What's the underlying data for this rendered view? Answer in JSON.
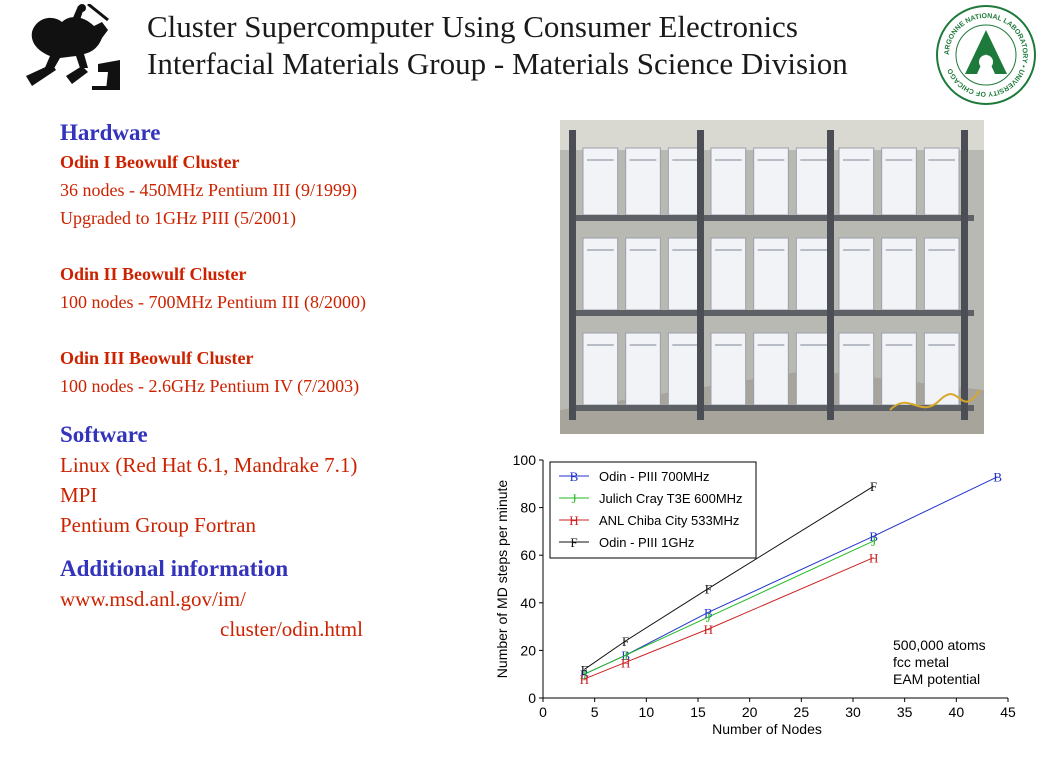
{
  "header": {
    "title_line1": "Cluster Supercomputer Using Consumer Electronics",
    "title_line2": "Interfacial Materials Group - Materials Science Division"
  },
  "logos": {
    "left": {
      "icon": "horse-rider-logo",
      "lettering": ""
    },
    "right": {
      "icon": "argonne-national-laboratory-seal",
      "lettering": "ARGONNE NATIONAL LABORATORY • UNIVERSITY OF CHICAGO"
    }
  },
  "hardware": {
    "heading": "Hardware",
    "clusters": [
      {
        "name": "Odin I Beowulf Cluster",
        "lines": [
          "36 nodes - 450MHz Pentium III (9/1999)",
          "Upgraded to 1GHz PIII (5/2001)"
        ]
      },
      {
        "name": "Odin II Beowulf Cluster",
        "lines": [
          "100 nodes - 700MHz Pentium III (8/2000)"
        ]
      },
      {
        "name": "Odin III Beowulf Cluster",
        "lines": [
          "100 nodes - 2.6GHz Pentium IV (7/2003)"
        ]
      }
    ]
  },
  "software": {
    "heading": "Software",
    "items": [
      "Linux  (Red Hat 6.1, Mandrake 7.1)",
      "MPI",
      "Pentium Group Fortran"
    ]
  },
  "additional": {
    "heading": "Additional information",
    "url_line1": "www.msd.anl.gov/im/",
    "url_line2": "cluster/odin.html"
  },
  "photo": {
    "icon": "server-rack-photo"
  },
  "colors": {
    "title": "#1a1a1a",
    "heading": "#3333bb",
    "body_text": "#cc2200"
  },
  "chart_data": {
    "type": "line",
    "title": "",
    "xlabel": "Number of Nodes",
    "ylabel": "Number of MD steps per minute",
    "xlim": [
      0,
      45
    ],
    "ylim": [
      0,
      100
    ],
    "x_ticks": [
      0,
      5,
      10,
      15,
      20,
      25,
      30,
      35,
      40,
      45
    ],
    "y_ticks": [
      0,
      20,
      40,
      60,
      80,
      100
    ],
    "grid": false,
    "legend_position": "top-left",
    "annotation": [
      "500,000 atoms",
      "fcc metal",
      "EAM potential"
    ],
    "series": [
      {
        "name": "Odin - PIII 700MHz",
        "marker": "B",
        "color": "#2233cc",
        "x": [
          4,
          8,
          16,
          32,
          44
        ],
        "y": [
          10,
          18,
          36,
          68,
          93
        ]
      },
      {
        "name": "Julich Cray T3E 600MHz",
        "marker": "J",
        "color": "#22bb22",
        "x": [
          4,
          8,
          16,
          32
        ],
        "y": [
          10,
          18,
          34,
          66
        ]
      },
      {
        "name": "ANL Chiba City 533MHz",
        "marker": "H",
        "color": "#cc2222",
        "x": [
          4,
          8,
          16,
          32
        ],
        "y": [
          8,
          15,
          29,
          59
        ]
      },
      {
        "name": "Odin - PIII 1GHz",
        "marker": "F",
        "color": "#111111",
        "x": [
          4,
          8,
          16,
          32
        ],
        "y": [
          12,
          24,
          46,
          89
        ]
      }
    ]
  }
}
